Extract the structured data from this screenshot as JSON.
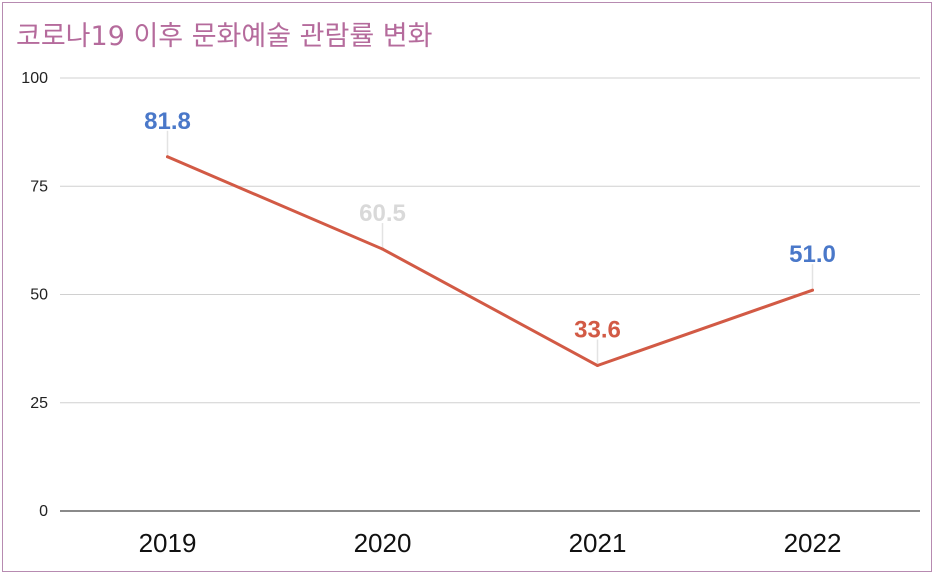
{
  "chart_data": {
    "type": "line",
    "title": "코로나19 이후 문화예술 관람률 변화",
    "categories": [
      "2019",
      "2020",
      "2021",
      "2022"
    ],
    "series": [
      {
        "values": [
          81.8,
          60.5,
          33.6,
          51.0
        ],
        "labels": [
          "81.8",
          "60.5",
          "33.6",
          "51.0"
        ],
        "color": "#d25a45"
      }
    ],
    "label_colors": [
      "#4a78c9",
      "#d9d9d9",
      "#d25a45",
      "#4a78c9"
    ],
    "ylim": [
      0,
      100
    ],
    "yticks": [
      "0",
      "25",
      "50",
      "75",
      "100"
    ],
    "grid": true,
    "legend": "none",
    "colors": {
      "title": "#b56b9c",
      "frame": "#b78bb1",
      "grid": "#d0d0d0"
    }
  }
}
